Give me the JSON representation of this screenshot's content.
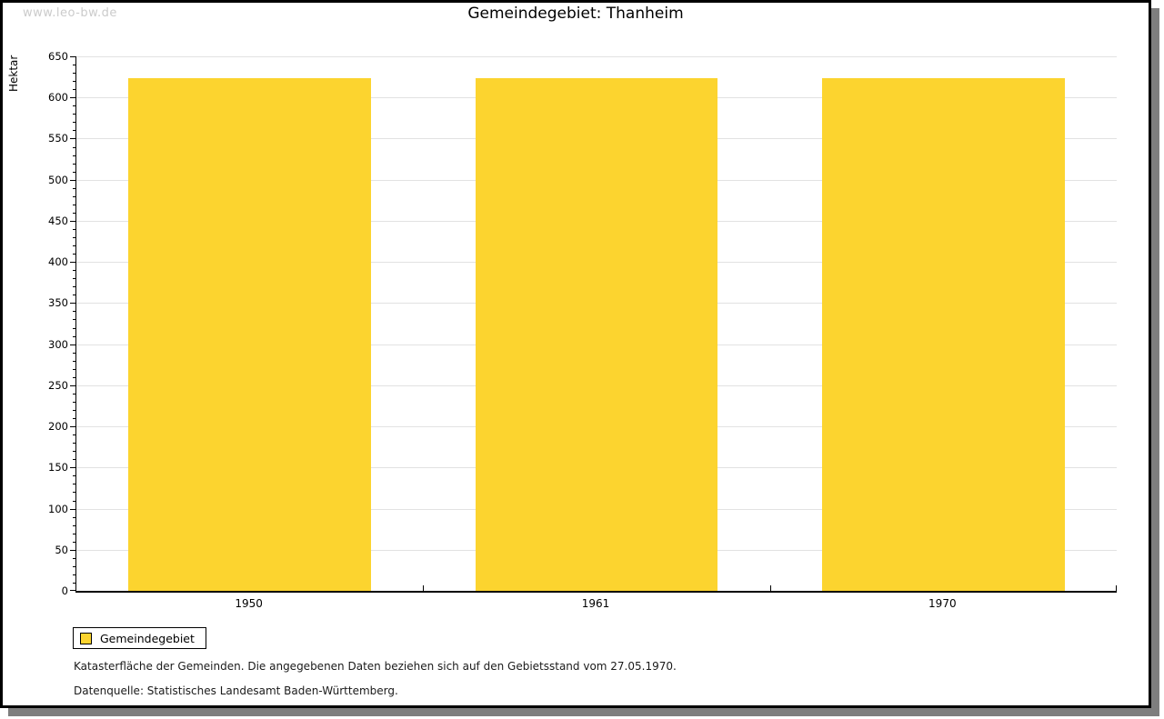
{
  "watermark": "www.leo-bw.de",
  "chart_data": {
    "type": "bar",
    "title": "Gemeindegebiet: Thanheim",
    "ylabel": "Hektar",
    "xlabel": "",
    "categories": [
      "1950",
      "1961",
      "1970"
    ],
    "series": [
      {
        "name": "Gemeindegebiet",
        "values": [
          623,
          623,
          623
        ]
      }
    ],
    "ylim": [
      0,
      650
    ],
    "ytick_major": 50,
    "ytick_minor": 10,
    "grid": true,
    "legend_position": "bottom-left",
    "bar_color": "#FCD42F",
    "gridline_color": "#e2e2e2"
  },
  "legend": {
    "label": "Gemeindegebiet"
  },
  "notes": {
    "line1": "Katasterfläche der Gemeinden. Die angegebenen Daten beziehen sich auf den Gebietsstand vom 27.05.1970.",
    "line2": "Datenquelle: Statistisches Landesamt Baden-Württemberg."
  }
}
